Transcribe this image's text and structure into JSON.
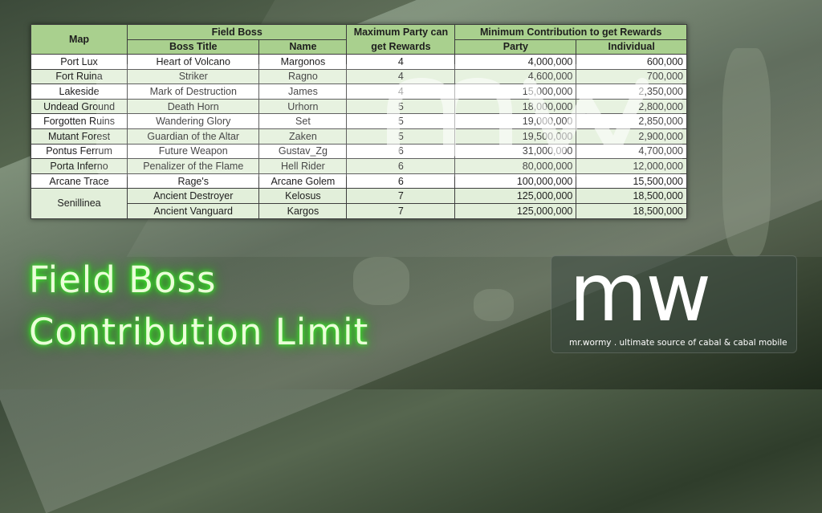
{
  "title": {
    "line1": "Field Boss",
    "line2": "Contribution Limit"
  },
  "watermark": {
    "logo": "mw",
    "tagline": "mr.wormy . ultimate source of cabal & cabal mobile"
  },
  "table": {
    "headers": {
      "map": "Map",
      "field_boss": "Field Boss",
      "boss_title": "Boss Title",
      "name": "Name",
      "max_party": "Maximum Party can get Rewards",
      "min_contribution": "Minimum Contribution to get Rewards",
      "party": "Party",
      "individual": "Individual"
    },
    "rows": [
      {
        "map": "Port Lux",
        "title": "Heart of Volcano",
        "name": "Margonos",
        "max": "4",
        "party": "4,000,000",
        "individual": "600,000"
      },
      {
        "map": "Fort Ruina",
        "title": "Striker",
        "name": "Ragno",
        "max": "4",
        "party": "4,600,000",
        "individual": "700,000"
      },
      {
        "map": "Lakeside",
        "title": "Mark of Destruction",
        "name": "James",
        "max": "4",
        "party": "15,000,000",
        "individual": "2,350,000"
      },
      {
        "map": "Undead Ground",
        "title": "Death Horn",
        "name": "Urhorn",
        "max": "5",
        "party": "18,000,000",
        "individual": "2,800,000"
      },
      {
        "map": "Forgotten Ruins",
        "title": "Wandering Glory",
        "name": "Set",
        "max": "5",
        "party": "19,000,000",
        "individual": "2,850,000"
      },
      {
        "map": "Mutant Forest",
        "title": "Guardian of the Altar",
        "name": "Zaken",
        "max": "5",
        "party": "19,500,000",
        "individual": "2,900,000"
      },
      {
        "map": "Pontus Ferrum",
        "title": "Future Weapon",
        "name": "Gustav_Zg",
        "max": "6",
        "party": "31,000,000",
        "individual": "4,700,000"
      },
      {
        "map": "Porta Inferno",
        "title": "Penalizer of the Flame",
        "name": "Hell Rider",
        "max": "6",
        "party": "80,000,000",
        "individual": "12,000,000"
      },
      {
        "map": "Arcane Trace",
        "title": "Rage's",
        "name": "Arcane Golem",
        "max": "6",
        "party": "100,000,000",
        "individual": "15,500,000"
      },
      {
        "map": "Senillinea",
        "title": "Ancient Destroyer",
        "name": "Kelosus",
        "max": "7",
        "party": "125,000,000",
        "individual": "18,500,000"
      },
      {
        "map": "",
        "title": "Ancient Vanguard",
        "name": "Kargos",
        "max": "7",
        "party": "125,000,000",
        "individual": "18,500,000"
      }
    ]
  }
}
